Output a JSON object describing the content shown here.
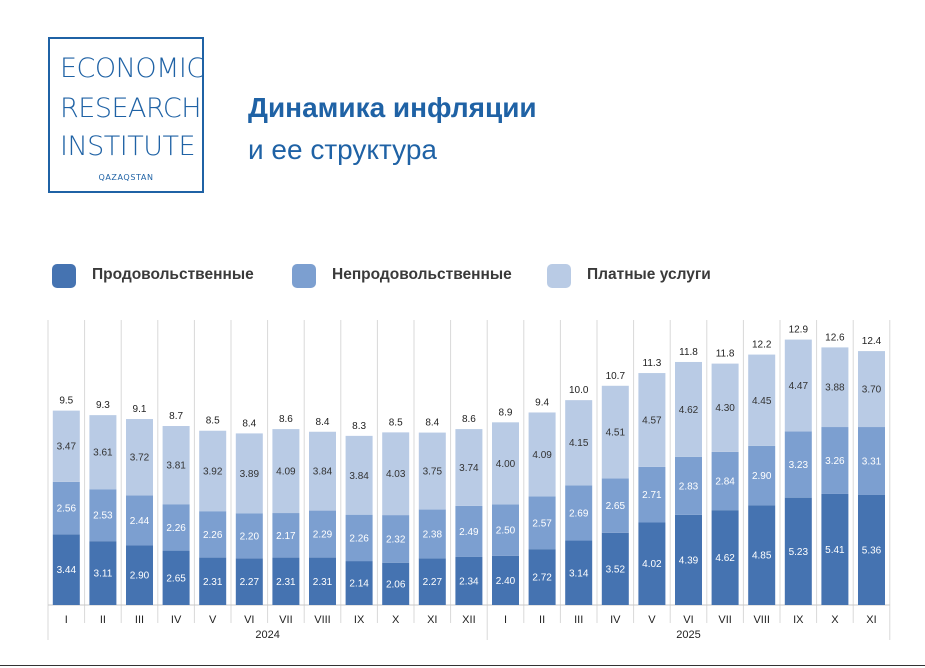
{
  "logo": {
    "line1": "ECONOMIC",
    "line2": "RESEARCH",
    "line3": "INSTITUTE",
    "sub": "QAZAQSTAN"
  },
  "title": {
    "line1": "Динамика инфляции",
    "line2": "и ее структура"
  },
  "colors": {
    "brand": "#1f62a5",
    "food": "#4573b1",
    "nonfood": "#7c9fd0",
    "services": "#b9cbe5"
  },
  "chart_data": {
    "type": "bar",
    "stacked": true,
    "categories": [
      "I",
      "II",
      "III",
      "IV",
      "V",
      "VI",
      "VII",
      "VIII",
      "IX",
      "X",
      "XI",
      "XII",
      "I",
      "II",
      "III",
      "IV",
      "V",
      "VI",
      "VII",
      "VIII",
      "IX",
      "X",
      "XI"
    ],
    "year_groups": [
      {
        "label": "2024",
        "count": 12
      },
      {
        "label": "2025",
        "count": 11
      }
    ],
    "series": [
      {
        "name": "Продовольственные",
        "color": "#4573b1",
        "values": [
          "3.44",
          "3.11",
          "2.90",
          "2.65",
          "2.31",
          "2.27",
          "2.31",
          "2.31",
          "2.14",
          "2.06",
          "2.27",
          "2.34",
          "2.40",
          "2.72",
          "3.14",
          "3.52",
          "4.02",
          "4.39",
          "4.62",
          "4.85",
          "5.23",
          "5.41",
          "5.36"
        ]
      },
      {
        "name": "Непродовольственные",
        "color": "#7c9fd0",
        "values": [
          "2.56",
          "2.53",
          "2.44",
          "2.26",
          "2.26",
          "2.20",
          "2.17",
          "2.29",
          "2.26",
          "2.32",
          "2.38",
          "2.49",
          "2.50",
          "2.57",
          "2.69",
          "2.65",
          "2.71",
          "2.83",
          "2.84",
          "2.90",
          "3.23",
          "3.26",
          "3.31"
        ]
      },
      {
        "name": "Платные услуги",
        "color": "#b9cbe5",
        "values": [
          "3.47",
          "3.61",
          "3.72",
          "3.81",
          "3.92",
          "3.89",
          "4.09",
          "3.84",
          "3.84",
          "4.03",
          "3.75",
          "3.74",
          "4.00",
          "4.09",
          "4.15",
          "4.51",
          "4.57",
          "4.62",
          "4.30",
          "4.45",
          "4.47",
          "3.88",
          "3.70"
        ]
      }
    ],
    "totals": [
      "9.5",
      "9.3",
      "9.1",
      "8.7",
      "8.5",
      "8.4",
      "8.6",
      "8.4",
      "8.3",
      "8.5",
      "8.4",
      "8.6",
      "8.9",
      "9.4",
      "10.0",
      "10.7",
      "11.3",
      "11.8",
      "11.8",
      "12.2",
      "12.9",
      "12.6",
      "12.4"
    ],
    "ylim": [
      0,
      13.5
    ],
    "grid": false,
    "legend_position": "top-left"
  }
}
